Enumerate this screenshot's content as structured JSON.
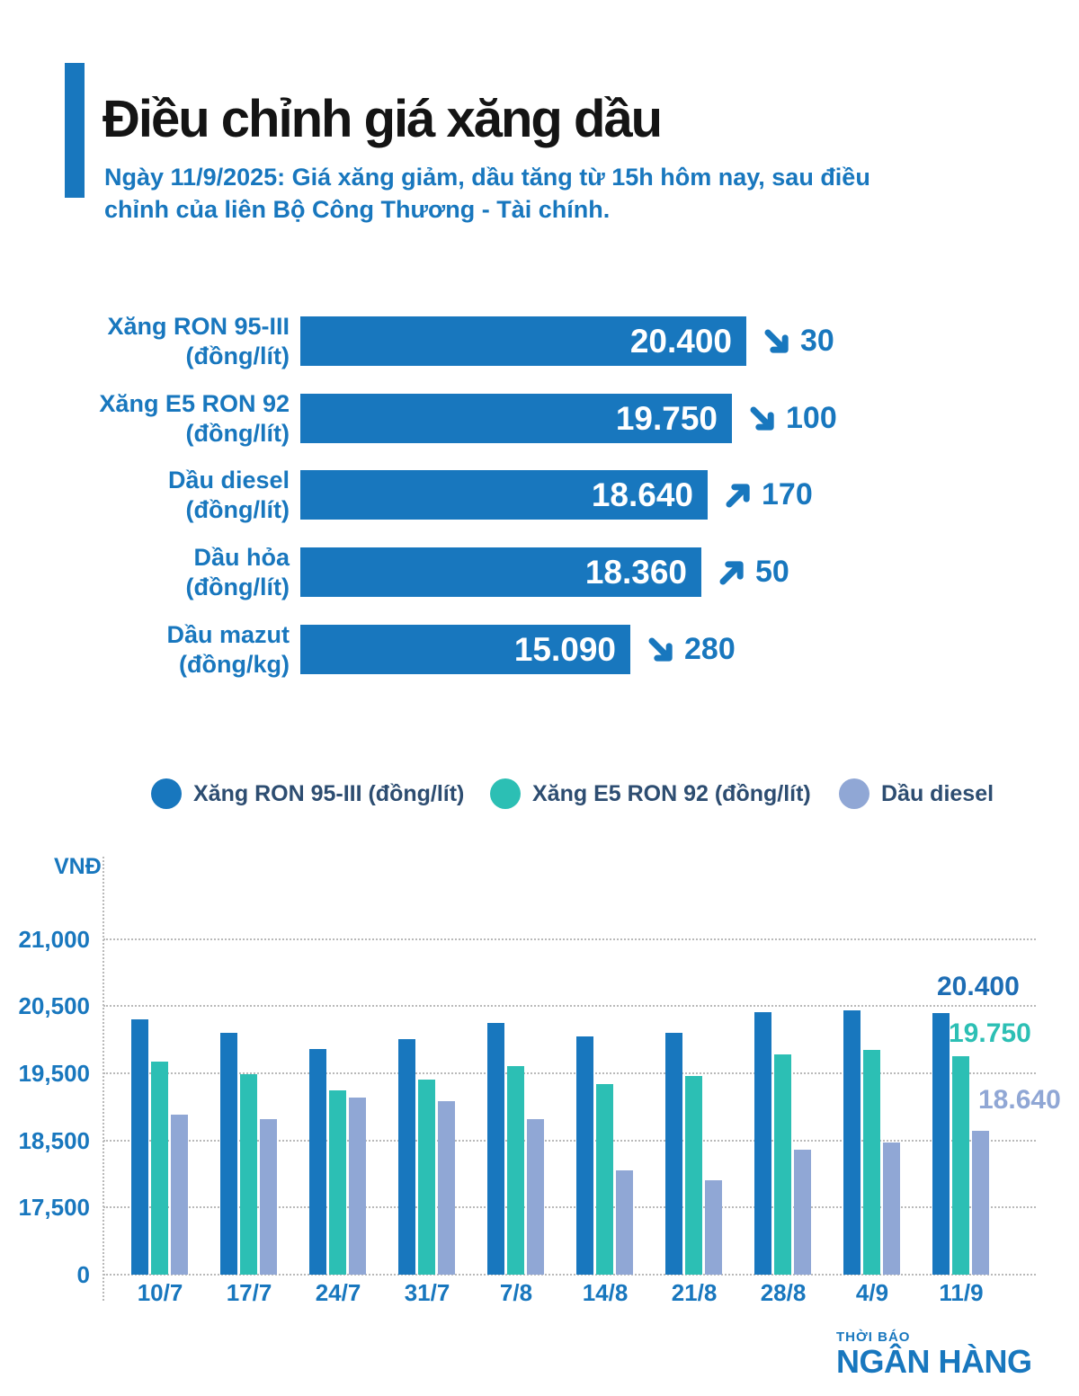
{
  "header": {
    "title": "Điều chỉnh giá xăng dầu",
    "subtitle": "Ngày 11/9/2025: Giá xăng giảm, dầu tăng từ 15h hôm nay, sau điều chỉnh của liên Bộ Công Thương - Tài chính."
  },
  "palette": {
    "primary_blue": "#1877be",
    "teal": "#2cbfb4",
    "slate_blue": "#90a7d5",
    "navy_text": "#2d4d71",
    "grid_gray": "#b9b9b9",
    "title_black": "#141414"
  },
  "price_bars": [
    {
      "name": "Xăng RON 95-III",
      "unit": "(đồng/lít)",
      "value": "20.400",
      "direction": "decrease",
      "change": "30"
    },
    {
      "name": "Xăng E5 RON 92",
      "unit": "(đồng/lít)",
      "value": "19.750",
      "direction": "decrease",
      "change": "100"
    },
    {
      "name": "Dầu diesel",
      "unit": "(đồng/lít)",
      "value": "18.640",
      "direction": "increase",
      "change": "170"
    },
    {
      "name": "Dầu hỏa",
      "unit": "(đồng/lít)",
      "value": "18.360",
      "direction": "increase",
      "change": "50"
    },
    {
      "name": "Dầu mazut",
      "unit": "(đồng/kg)",
      "value": "15.090",
      "direction": "decrease",
      "change": "280"
    }
  ],
  "legend": {
    "items": [
      {
        "label": "Xăng RON 95-III (đồng/lít)",
        "color": "#1877be"
      },
      {
        "label": "Xăng E5 RON 92 (đồng/lít)",
        "color": "#2cbfb4"
      },
      {
        "label": "Dầu diesel",
        "color": "#90a7d5"
      }
    ]
  },
  "chart_data": {
    "type": "bar",
    "title": "",
    "ylabel": "VNĐ",
    "xlabel": "",
    "grid": "dotted horizontal gridlines, dotted vertical axis",
    "legend_position": "top",
    "ylim": [
      0,
      21000
    ],
    "axis_note": "broken/compressed axis: ticks 0, 17500, 18500, 19500, 20500, 21000 are evenly spaced",
    "categories": [
      "10/7",
      "17/7",
      "24/7",
      "31/7",
      "7/8",
      "14/8",
      "21/8",
      "28/8",
      "4/9",
      "11/9"
    ],
    "series": [
      {
        "name": "Xăng RON 95-III (đồng/lít)",
        "color": "#1877be",
        "values": [
          20300,
          20100,
          19860,
          20010,
          20250,
          20050,
          20100,
          20410,
          20430,
          20400
        ]
      },
      {
        "name": "Xăng E5 RON 92 (đồng/lít)",
        "color": "#2cbfb4",
        "values": [
          19670,
          19480,
          19250,
          19400,
          19600,
          19340,
          19460,
          19780,
          19850,
          19750
        ]
      },
      {
        "name": "Dầu diesel",
        "color": "#90a7d5",
        "values": [
          18880,
          18820,
          19140,
          19090,
          18820,
          18050,
          17900,
          18360,
          18470,
          18640
        ]
      }
    ],
    "yticks": [
      {
        "label": "21,000",
        "value": 21000
      },
      {
        "label": "20,500",
        "value": 20500
      },
      {
        "label": "19,500",
        "value": 19500
      },
      {
        "label": "18,500",
        "value": 18500
      },
      {
        "label": "17,500",
        "value": 17500
      },
      {
        "label": "0",
        "value": 0
      }
    ],
    "end_labels": [
      {
        "text": "20.400",
        "color": "#1d6db4",
        "series": "Xăng RON 95-III (đồng/lít)"
      },
      {
        "text": "19.750",
        "color": "#2cbfb4",
        "series": "Xăng E5 RON 92 (đồng/lít)"
      },
      {
        "text": "18.640",
        "color": "#90a7d5",
        "series": "Dầu diesel"
      }
    ]
  },
  "footer": {
    "brand_small": "THỜI BÁO",
    "brand_large": "NGÂN HÀNG"
  }
}
